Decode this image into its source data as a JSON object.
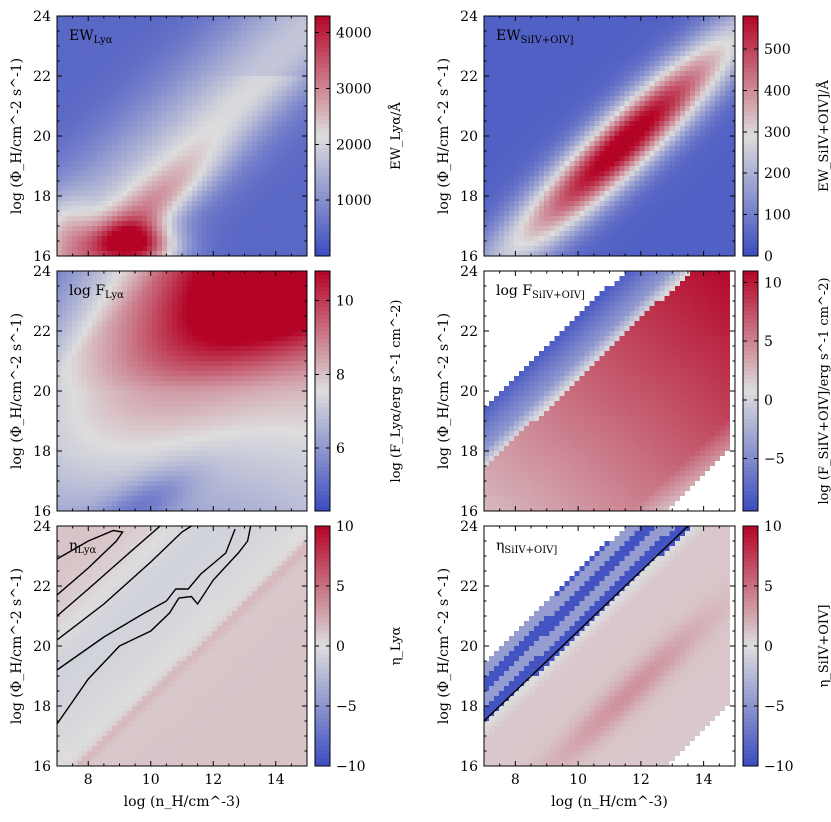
{
  "figure": {
    "colors": {
      "cmap_low": "#3b4cc0",
      "cmap_mid": "#dddddd",
      "cmap_high": "#b40426",
      "missing": "#ffffff",
      "contour": "#000000"
    }
  },
  "chart_data": [
    {
      "type": "heatmap",
      "id": "ew_lya",
      "inset_label": "EW",
      "inset_sub": "Lyα",
      "xlabel": "",
      "ylabel": "log (Φ_H/cm^-2 s^-1)",
      "colorbar_label": "EW_Lyα/Å",
      "xlim": [
        7,
        15
      ],
      "ylim": [
        16,
        24
      ],
      "xticks": [
        8,
        10,
        12,
        14
      ],
      "yticks": [
        16,
        18,
        20,
        22,
        24
      ],
      "clim": [
        0,
        4300
      ],
      "cticks": [
        1000,
        2000,
        3000,
        4000
      ],
      "model": "ew_lya",
      "contours": false
    },
    {
      "type": "heatmap",
      "id": "ew_siv",
      "inset_label": "EW",
      "inset_sub": "SiIV+OIV]",
      "xlabel": "",
      "ylabel": "log (Φ_H/cm^-2 s^-1)",
      "colorbar_label": "EW_SiIV+OIV]/Å",
      "xlim": [
        7,
        15
      ],
      "ylim": [
        16,
        24
      ],
      "xticks": [
        8,
        10,
        12,
        14
      ],
      "yticks": [
        16,
        18,
        20,
        22,
        24
      ],
      "clim": [
        0,
        580
      ],
      "cticks": [
        0,
        100,
        200,
        300,
        400,
        500
      ],
      "model": "ew_siv",
      "contours": false
    },
    {
      "type": "heatmap",
      "id": "flux_lya",
      "inset_label": "log F",
      "inset_sub": "Lyα",
      "xlabel": "",
      "ylabel": "log (Φ_H/cm^-2 s^-1)",
      "colorbar_label": "log (F_Lyα/erg s^-1 cm^-2)",
      "xlim": [
        7,
        15
      ],
      "ylim": [
        16,
        24
      ],
      "xticks": [
        8,
        10,
        12,
        14
      ],
      "yticks": [
        16,
        18,
        20,
        22,
        24
      ],
      "clim": [
        4.3,
        10.8
      ],
      "cticks": [
        6,
        8,
        10
      ],
      "model": "flux_lya",
      "contours": false
    },
    {
      "type": "heatmap",
      "id": "flux_siv",
      "inset_label": "log F",
      "inset_sub": "SiIV+OIV]",
      "xlabel": "",
      "ylabel": "log (Φ_H/cm^-2 s^-1)",
      "colorbar_label": "log (F_SiIV+OIV]/erg s^-1 cm^-2)",
      "xlim": [
        7,
        15
      ],
      "ylim": [
        16,
        24
      ],
      "xticks": [
        8,
        10,
        12,
        14
      ],
      "yticks": [
        16,
        18,
        20,
        22,
        24
      ],
      "clim": [
        -9.5,
        11
      ],
      "cticks": [
        -5,
        0,
        5,
        10
      ],
      "model": "flux_siv",
      "contours": false
    },
    {
      "type": "heatmap",
      "id": "eta_lya",
      "inset_label": "η",
      "inset_sub": "Lyα",
      "xlabel": "log (n_H/cm^-3)",
      "ylabel": "log (Φ_H/cm^-2 s^-1)",
      "colorbar_label": "η_Lyα",
      "xlim": [
        7,
        15
      ],
      "ylim": [
        16,
        24
      ],
      "xticks": [
        8,
        10,
        12,
        14
      ],
      "yticks": [
        16,
        18,
        20,
        22,
        24
      ],
      "clim": [
        -10,
        10
      ],
      "cticks": [
        -10,
        -5,
        0,
        5,
        10
      ],
      "model": "eta_lya",
      "contours": true,
      "contour_lines": [
        [
          [
            7.0,
            22.9
          ],
          [
            8.0,
            23.5
          ],
          [
            8.8,
            23.85
          ],
          [
            9.1,
            23.8
          ],
          [
            8.9,
            23.5
          ],
          [
            8.0,
            22.6
          ],
          [
            7.0,
            21.7
          ]
        ],
        [
          [
            7.0,
            21.0
          ],
          [
            8.0,
            21.9
          ],
          [
            9.2,
            23.0
          ],
          [
            10.3,
            24.0
          ]
        ],
        [
          [
            7.0,
            20.2
          ],
          [
            8.5,
            21.4
          ],
          [
            10.0,
            22.8
          ],
          [
            11.0,
            23.8
          ],
          [
            11.3,
            24.0
          ]
        ],
        [
          [
            7.0,
            19.2
          ],
          [
            8.5,
            20.3
          ],
          [
            9.8,
            21.1
          ],
          [
            10.5,
            21.5
          ],
          [
            10.8,
            21.9
          ],
          [
            11.2,
            21.9
          ],
          [
            11.6,
            22.4
          ],
          [
            12.4,
            23.1
          ],
          [
            12.7,
            23.9
          ]
        ],
        [
          [
            7.0,
            17.4
          ],
          [
            8.0,
            18.9
          ],
          [
            9.0,
            20.0
          ],
          [
            10.0,
            20.5
          ],
          [
            10.6,
            21.1
          ],
          [
            10.9,
            21.6
          ],
          [
            11.3,
            21.65
          ],
          [
            11.5,
            21.4
          ],
          [
            12.0,
            22.2
          ],
          [
            12.8,
            23.1
          ],
          [
            13.1,
            23.5
          ],
          [
            13.2,
            24.0
          ]
        ]
      ]
    },
    {
      "type": "heatmap",
      "id": "eta_siv",
      "inset_label": "η",
      "inset_sub": "SiIV+OIV]",
      "xlabel": "log (n_H/cm^-3)",
      "ylabel": "log (Φ_H/cm^-2 s^-1)",
      "colorbar_label": "η_SiIV+OIV]",
      "xlim": [
        7,
        15
      ],
      "ylim": [
        16,
        24
      ],
      "xticks": [
        8,
        10,
        12,
        14
      ],
      "yticks": [
        16,
        18,
        20,
        22,
        24
      ],
      "clim": [
        -10,
        10
      ],
      "cticks": [
        -10,
        -5,
        0,
        5,
        10
      ],
      "model": "eta_siv",
      "contours": true,
      "contour_lines": [
        [
          [
            7.0,
            17.5
          ],
          [
            8.0,
            18.5
          ],
          [
            9.0,
            19.5
          ],
          [
            10.0,
            20.5
          ],
          [
            11.0,
            21.5
          ],
          [
            12.0,
            22.5
          ],
          [
            13.0,
            23.5
          ],
          [
            13.5,
            24.0
          ]
        ]
      ]
    }
  ]
}
